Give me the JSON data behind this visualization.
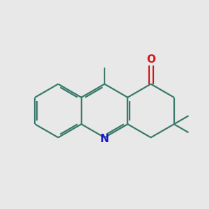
{
  "background_color": "#e8e8e8",
  "bond_color": "#3a7a6a",
  "n_color": "#1a1acc",
  "o_color": "#cc1a1a",
  "line_width": 1.6,
  "figsize": [
    3.0,
    3.0
  ],
  "dpi": 100
}
